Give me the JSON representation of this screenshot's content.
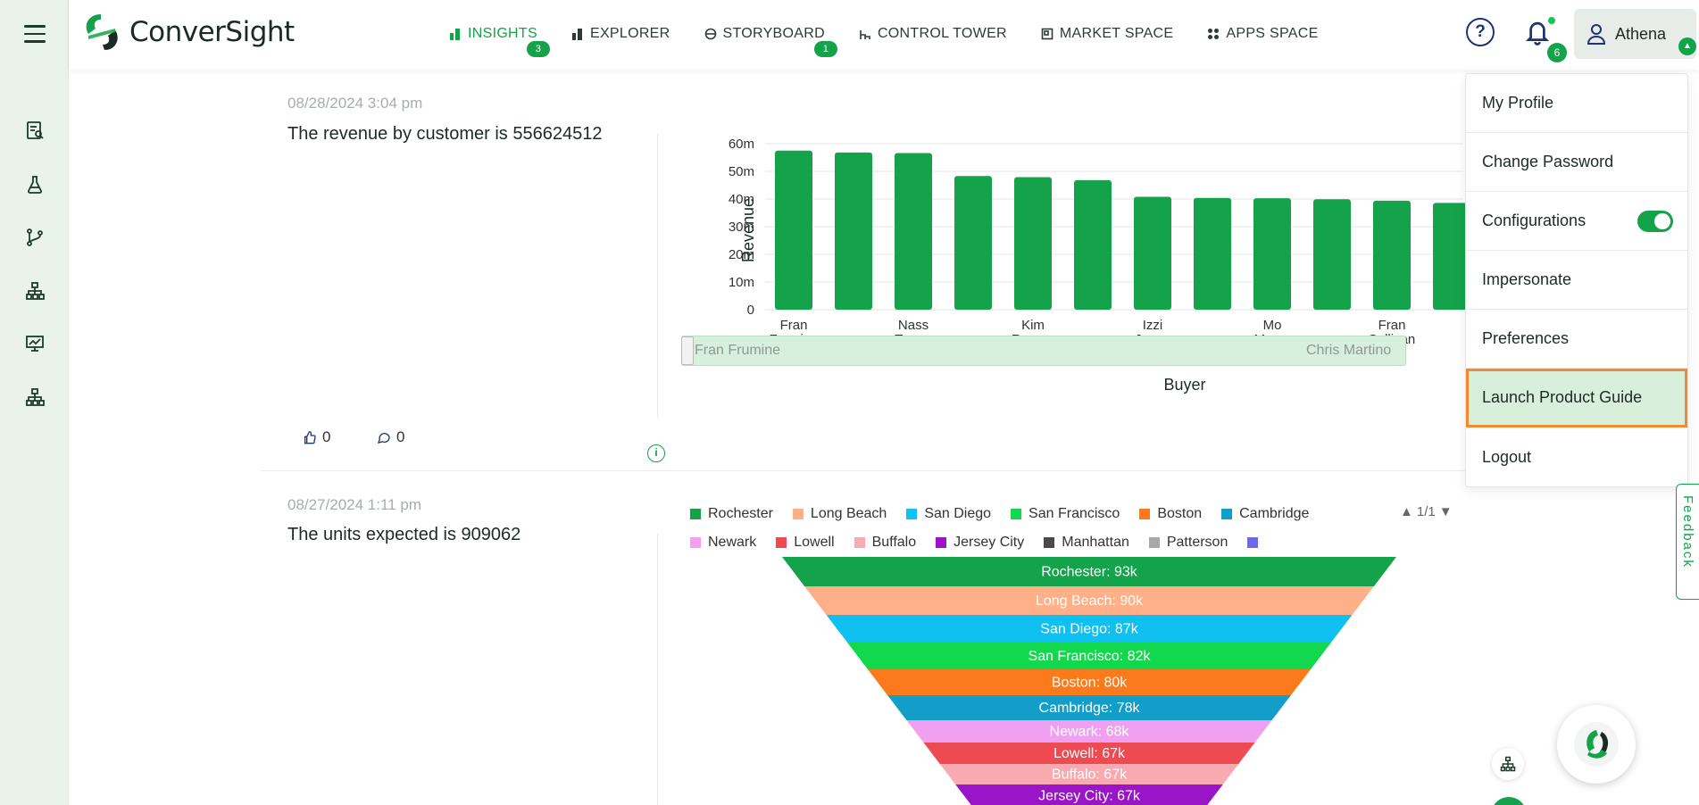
{
  "app": {
    "brand": "ConverSight"
  },
  "nav": [
    {
      "label": "INSIGHTS",
      "icon": "bar-icon",
      "badge": "3",
      "active": true
    },
    {
      "label": "EXPLORER",
      "icon": "bar-icon",
      "badge": "",
      "active": false
    },
    {
      "label": "STORYBOARD",
      "icon": "storyboard-icon",
      "badge": "1",
      "active": false
    },
    {
      "label": "CONTROL TOWER",
      "icon": "tower-icon",
      "badge": "",
      "active": false
    },
    {
      "label": "MARKET SPACE",
      "icon": "market-icon",
      "badge": "",
      "active": false
    },
    {
      "label": "APPS SPACE",
      "icon": "apps-icon",
      "badge": "",
      "active": false
    }
  ],
  "header": {
    "notifications_count": "6",
    "user_name": "Athena"
  },
  "cards": [
    {
      "date": "08/28/2024 3:04 pm",
      "headline": "The revenue by customer is 556624512",
      "likes": "0",
      "comments": "0"
    },
    {
      "date": "08/27/2024 1:11 pm",
      "headline": "The units expected is 909062"
    }
  ],
  "bar_chart": {
    "ylabel": "Revenue",
    "xlabel": "Buyer",
    "ticks": [
      "0",
      "10m",
      "20m",
      "30m",
      "40m",
      "50m",
      "60m"
    ],
    "range_start": "Fran Frumine",
    "range_end": "Chris Martino"
  },
  "legend": {
    "page": "1/1",
    "items": [
      {
        "name": "Rochester",
        "color": "#14a34a"
      },
      {
        "name": "Long Beach",
        "color": "#ffb088"
      },
      {
        "name": "San Diego",
        "color": "#10c0f0"
      },
      {
        "name": "San Francisco",
        "color": "#12d84e"
      },
      {
        "name": "Boston",
        "color": "#fb7a1c"
      },
      {
        "name": "Cambridge",
        "color": "#129ec8"
      },
      {
        "name": "Newark",
        "color": "#f0a0f0"
      },
      {
        "name": "Lowell",
        "color": "#ee4a52"
      },
      {
        "name": "Buffalo",
        "color": "#f8aab0"
      },
      {
        "name": "Jersey City",
        "color": "#9a14c8"
      },
      {
        "name": "Manhattan",
        "color": "#4a4a4a"
      },
      {
        "name": "Patterson",
        "color": "#a8a8a8"
      },
      {
        "name": "",
        "color": "#6a6ae8"
      }
    ]
  },
  "menu": {
    "items": [
      "My Profile",
      "Change Password",
      "Configurations",
      "Impersonate",
      "Preferences",
      "Launch Product Guide",
      "Logout"
    ],
    "highlighted": "Launch Product Guide",
    "configurations_toggle": true
  },
  "feedback_label": "Feedback",
  "chart_data": [
    {
      "type": "bar",
      "title": "",
      "xlabel": "Buyer",
      "ylabel": "Revenue",
      "ylim": [
        0,
        60000000
      ],
      "categories": [
        "Fran Frumine",
        "",
        "Nass Torres",
        "",
        "Kim Rogers",
        "",
        "Izzi Jones",
        "",
        "Mo Myers",
        "",
        "Fran Sullivan",
        ""
      ],
      "tick_labels": [
        "Fran Frumine",
        "Nass Torres",
        "Kim Rogers",
        "Izzi Jones",
        "Mo Myers",
        "Fran Sullivan"
      ],
      "values": [
        57500000,
        56800000,
        56600000,
        48300000,
        47900000,
        46800000,
        40800000,
        40400000,
        40300000,
        39900000,
        39400000,
        38600000
      ],
      "color": "#14a34a",
      "grid": true
    },
    {
      "type": "funnel",
      "title": "",
      "categories": [
        "Rochester",
        "Long Beach",
        "San Diego",
        "San Francisco",
        "Boston",
        "Cambridge",
        "Newark",
        "Lowell",
        "Buffalo",
        "Jersey City"
      ],
      "value_labels": [
        "93k",
        "90k",
        "87k",
        "82k",
        "80k",
        "78k",
        "68k",
        "67k",
        "67k",
        "67k"
      ],
      "values": [
        93000,
        90000,
        87000,
        82000,
        80000,
        78000,
        68000,
        67000,
        67000,
        67000
      ]
    }
  ]
}
